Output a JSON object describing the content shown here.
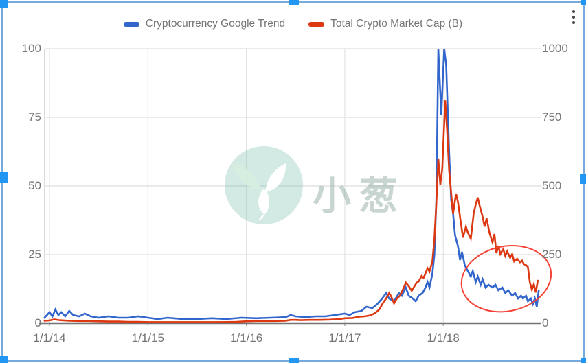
{
  "legend": [
    {
      "label": "Cryptocurrency Google Trend",
      "color": "#3366cc"
    },
    {
      "label": "Total Crypto Market Cap (B)",
      "color": "#dc3912"
    }
  ],
  "menu": {
    "icon": "kebab-menu"
  },
  "watermark": {
    "text": "小葱"
  },
  "colors": {
    "trend_line": "#3366cc",
    "marketcap_line": "#dc3912",
    "gridline": "#e3e3e3",
    "axis_line": "#cccccc",
    "baseline": "#757575",
    "label_text": "#757575",
    "annotation": "#f44336",
    "selection_border": "#76a9dc",
    "selection_handle": "#2196f3"
  },
  "chart_data": {
    "type": "line",
    "x_axis": {
      "tick_labels": [
        "1/1/14",
        "1/1/15",
        "1/1/16",
        "1/1/17",
        "1/1/18"
      ],
      "tick_years": [
        2014,
        2015,
        2016,
        2017,
        2018
      ],
      "range": [
        2013.95,
        2019.0
      ],
      "grid": true
    },
    "y_axis_left": {
      "tick_labels": [
        "0",
        "25",
        "50",
        "75",
        "100"
      ],
      "tick_values": [
        0,
        25,
        50,
        75,
        100
      ],
      "range": [
        0,
        100
      ],
      "series": "Cryptocurrency Google Trend",
      "grid": true
    },
    "y_axis_right": {
      "tick_labels": [
        "0",
        "250",
        "500",
        "750",
        "1000"
      ],
      "tick_values": [
        0,
        250,
        500,
        750,
        1000
      ],
      "range": [
        0,
        1000
      ],
      "series": "Total Crypto Market Cap (B)"
    },
    "legend_position": "top",
    "series": [
      {
        "name": "Cryptocurrency Google Trend",
        "axis": "left",
        "color": "#3366cc",
        "points": [
          [
            2013.95,
            2
          ],
          [
            2014.0,
            4
          ],
          [
            2014.03,
            2.5
          ],
          [
            2014.06,
            5
          ],
          [
            2014.09,
            3
          ],
          [
            2014.12,
            4
          ],
          [
            2014.16,
            2.5
          ],
          [
            2014.2,
            4.5
          ],
          [
            2014.24,
            3
          ],
          [
            2014.3,
            2.5
          ],
          [
            2014.36,
            3.5
          ],
          [
            2014.42,
            2.5
          ],
          [
            2014.5,
            2
          ],
          [
            2014.6,
            2.5
          ],
          [
            2014.7,
            2
          ],
          [
            2014.8,
            2
          ],
          [
            2014.9,
            2.5
          ],
          [
            2015.0,
            2
          ],
          [
            2015.1,
            1.5
          ],
          [
            2015.2,
            2
          ],
          [
            2015.35,
            1.5
          ],
          [
            2015.5,
            1.5
          ],
          [
            2015.65,
            1.8
          ],
          [
            2015.8,
            1.5
          ],
          [
            2015.95,
            2
          ],
          [
            2016.1,
            1.8
          ],
          [
            2016.25,
            2
          ],
          [
            2016.4,
            2.2
          ],
          [
            2016.45,
            3
          ],
          [
            2016.5,
            2.5
          ],
          [
            2016.6,
            2.2
          ],
          [
            2016.7,
            2.5
          ],
          [
            2016.8,
            2.5
          ],
          [
            2016.9,
            3
          ],
          [
            2017.0,
            3.5
          ],
          [
            2017.05,
            3
          ],
          [
            2017.1,
            4
          ],
          [
            2017.17,
            4.5
          ],
          [
            2017.22,
            6
          ],
          [
            2017.28,
            5.5
          ],
          [
            2017.33,
            7
          ],
          [
            2017.38,
            9
          ],
          [
            2017.42,
            11
          ],
          [
            2017.45,
            9
          ],
          [
            2017.5,
            8
          ],
          [
            2017.55,
            11
          ],
          [
            2017.58,
            10
          ],
          [
            2017.62,
            13
          ],
          [
            2017.65,
            10
          ],
          [
            2017.69,
            9
          ],
          [
            2017.72,
            8
          ],
          [
            2017.75,
            10
          ],
          [
            2017.79,
            11
          ],
          [
            2017.82,
            13
          ],
          [
            2017.84,
            15
          ],
          [
            2017.86,
            13
          ],
          [
            2017.89,
            18
          ],
          [
            2017.91,
            25
          ],
          [
            2017.93,
            45
          ],
          [
            2017.95,
            100
          ],
          [
            2017.98,
            76
          ],
          [
            2018.01,
            100
          ],
          [
            2018.03,
            94
          ],
          [
            2018.06,
            62
          ],
          [
            2018.08,
            45
          ],
          [
            2018.1,
            40
          ],
          [
            2018.12,
            32
          ],
          [
            2018.15,
            28
          ],
          [
            2018.17,
            23
          ],
          [
            2018.19,
            26
          ],
          [
            2018.22,
            21
          ],
          [
            2018.25,
            19
          ],
          [
            2018.28,
            17
          ],
          [
            2018.3,
            19
          ],
          [
            2018.33,
            15
          ],
          [
            2018.35,
            17
          ],
          [
            2018.38,
            14
          ],
          [
            2018.4,
            16
          ],
          [
            2018.43,
            13
          ],
          [
            2018.46,
            14
          ],
          [
            2018.5,
            13
          ],
          [
            2018.53,
            14
          ],
          [
            2018.56,
            12
          ],
          [
            2018.6,
            13
          ],
          [
            2018.63,
            11
          ],
          [
            2018.66,
            12
          ],
          [
            2018.7,
            10
          ],
          [
            2018.73,
            11
          ],
          [
            2018.76,
            9
          ],
          [
            2018.79,
            10
          ],
          [
            2018.81,
            9
          ],
          [
            2018.84,
            10
          ],
          [
            2018.86,
            8
          ],
          [
            2018.89,
            9
          ],
          [
            2018.91,
            7
          ],
          [
            2018.93,
            9
          ],
          [
            2018.95,
            6
          ],
          [
            2018.97,
            12
          ]
        ]
      },
      {
        "name": "Total Crypto Market Cap (B)",
        "axis": "right",
        "color": "#dc3912",
        "points": [
          [
            2013.95,
            9
          ],
          [
            2014.0,
            10
          ],
          [
            2014.05,
            14
          ],
          [
            2014.1,
            11
          ],
          [
            2014.2,
            9
          ],
          [
            2014.3,
            8
          ],
          [
            2014.4,
            8
          ],
          [
            2014.5,
            7
          ],
          [
            2014.6,
            6
          ],
          [
            2014.7,
            6
          ],
          [
            2014.8,
            5
          ],
          [
            2014.9,
            5
          ],
          [
            2015.0,
            4
          ],
          [
            2015.15,
            4
          ],
          [
            2015.3,
            4
          ],
          [
            2015.45,
            4
          ],
          [
            2015.6,
            4
          ],
          [
            2015.75,
            4
          ],
          [
            2015.9,
            5
          ],
          [
            2016.0,
            7
          ],
          [
            2016.1,
            8
          ],
          [
            2016.2,
            8
          ],
          [
            2016.3,
            8
          ],
          [
            2016.4,
            9
          ],
          [
            2016.45,
            12
          ],
          [
            2016.5,
            12
          ],
          [
            2016.55,
            11
          ],
          [
            2016.65,
            12
          ],
          [
            2016.75,
            12
          ],
          [
            2016.85,
            13
          ],
          [
            2016.95,
            15
          ],
          [
            2017.0,
            18
          ],
          [
            2017.08,
            19
          ],
          [
            2017.15,
            24
          ],
          [
            2017.2,
            25
          ],
          [
            2017.25,
            28
          ],
          [
            2017.3,
            35
          ],
          [
            2017.35,
            50
          ],
          [
            2017.39,
            75
          ],
          [
            2017.42,
            90
          ],
          [
            2017.45,
            110
          ],
          [
            2017.47,
            98
          ],
          [
            2017.5,
            72
          ],
          [
            2017.53,
            90
          ],
          [
            2017.56,
            100
          ],
          [
            2017.58,
            115
          ],
          [
            2017.6,
            130
          ],
          [
            2017.62,
            148
          ],
          [
            2017.65,
            135
          ],
          [
            2017.68,
            118
          ],
          [
            2017.7,
            130
          ],
          [
            2017.73,
            148
          ],
          [
            2017.75,
            152
          ],
          [
            2017.78,
            172
          ],
          [
            2017.8,
            165
          ],
          [
            2017.82,
            182
          ],
          [
            2017.84,
            200
          ],
          [
            2017.86,
            188
          ],
          [
            2017.89,
            225
          ],
          [
            2017.91,
            305
          ],
          [
            2017.93,
            440
          ],
          [
            2017.95,
            600
          ],
          [
            2017.97,
            505
          ],
          [
            2017.99,
            565
          ],
          [
            2018.02,
            812
          ],
          [
            2018.04,
            700
          ],
          [
            2018.06,
            555
          ],
          [
            2018.08,
            475
          ],
          [
            2018.1,
            398
          ],
          [
            2018.13,
            472
          ],
          [
            2018.15,
            440
          ],
          [
            2018.17,
            388
          ],
          [
            2018.2,
            312
          ],
          [
            2018.23,
            352
          ],
          [
            2018.25,
            330
          ],
          [
            2018.28,
            308
          ],
          [
            2018.31,
            402
          ],
          [
            2018.33,
            432
          ],
          [
            2018.35,
            458
          ],
          [
            2018.37,
            428
          ],
          [
            2018.4,
            388
          ],
          [
            2018.42,
            352
          ],
          [
            2018.44,
            382
          ],
          [
            2018.47,
            328
          ],
          [
            2018.5,
            295
          ],
          [
            2018.52,
            325
          ],
          [
            2018.54,
            255
          ],
          [
            2018.56,
            282
          ],
          [
            2018.58,
            252
          ],
          [
            2018.61,
            270
          ],
          [
            2018.63,
            245
          ],
          [
            2018.65,
            262
          ],
          [
            2018.68,
            238
          ],
          [
            2018.7,
            252
          ],
          [
            2018.72,
            225
          ],
          [
            2018.75,
            235
          ],
          [
            2018.78,
            222
          ],
          [
            2018.8,
            228
          ],
          [
            2018.82,
            215
          ],
          [
            2018.84,
            212
          ],
          [
            2018.86,
            205
          ],
          [
            2018.88,
            148
          ],
          [
            2018.9,
            122
          ],
          [
            2018.92,
            142
          ],
          [
            2018.94,
            112
          ],
          [
            2018.96,
            155
          ]
        ]
      }
    ],
    "annotation": {
      "type": "ellipse",
      "color": "#f44336",
      "axis": "right",
      "center": [
        2018.64,
        162
      ],
      "radius_years": 0.46,
      "radius_value": 118,
      "rotation_deg": -12,
      "meaning": "highlights the late-2018 decline of both series"
    }
  }
}
